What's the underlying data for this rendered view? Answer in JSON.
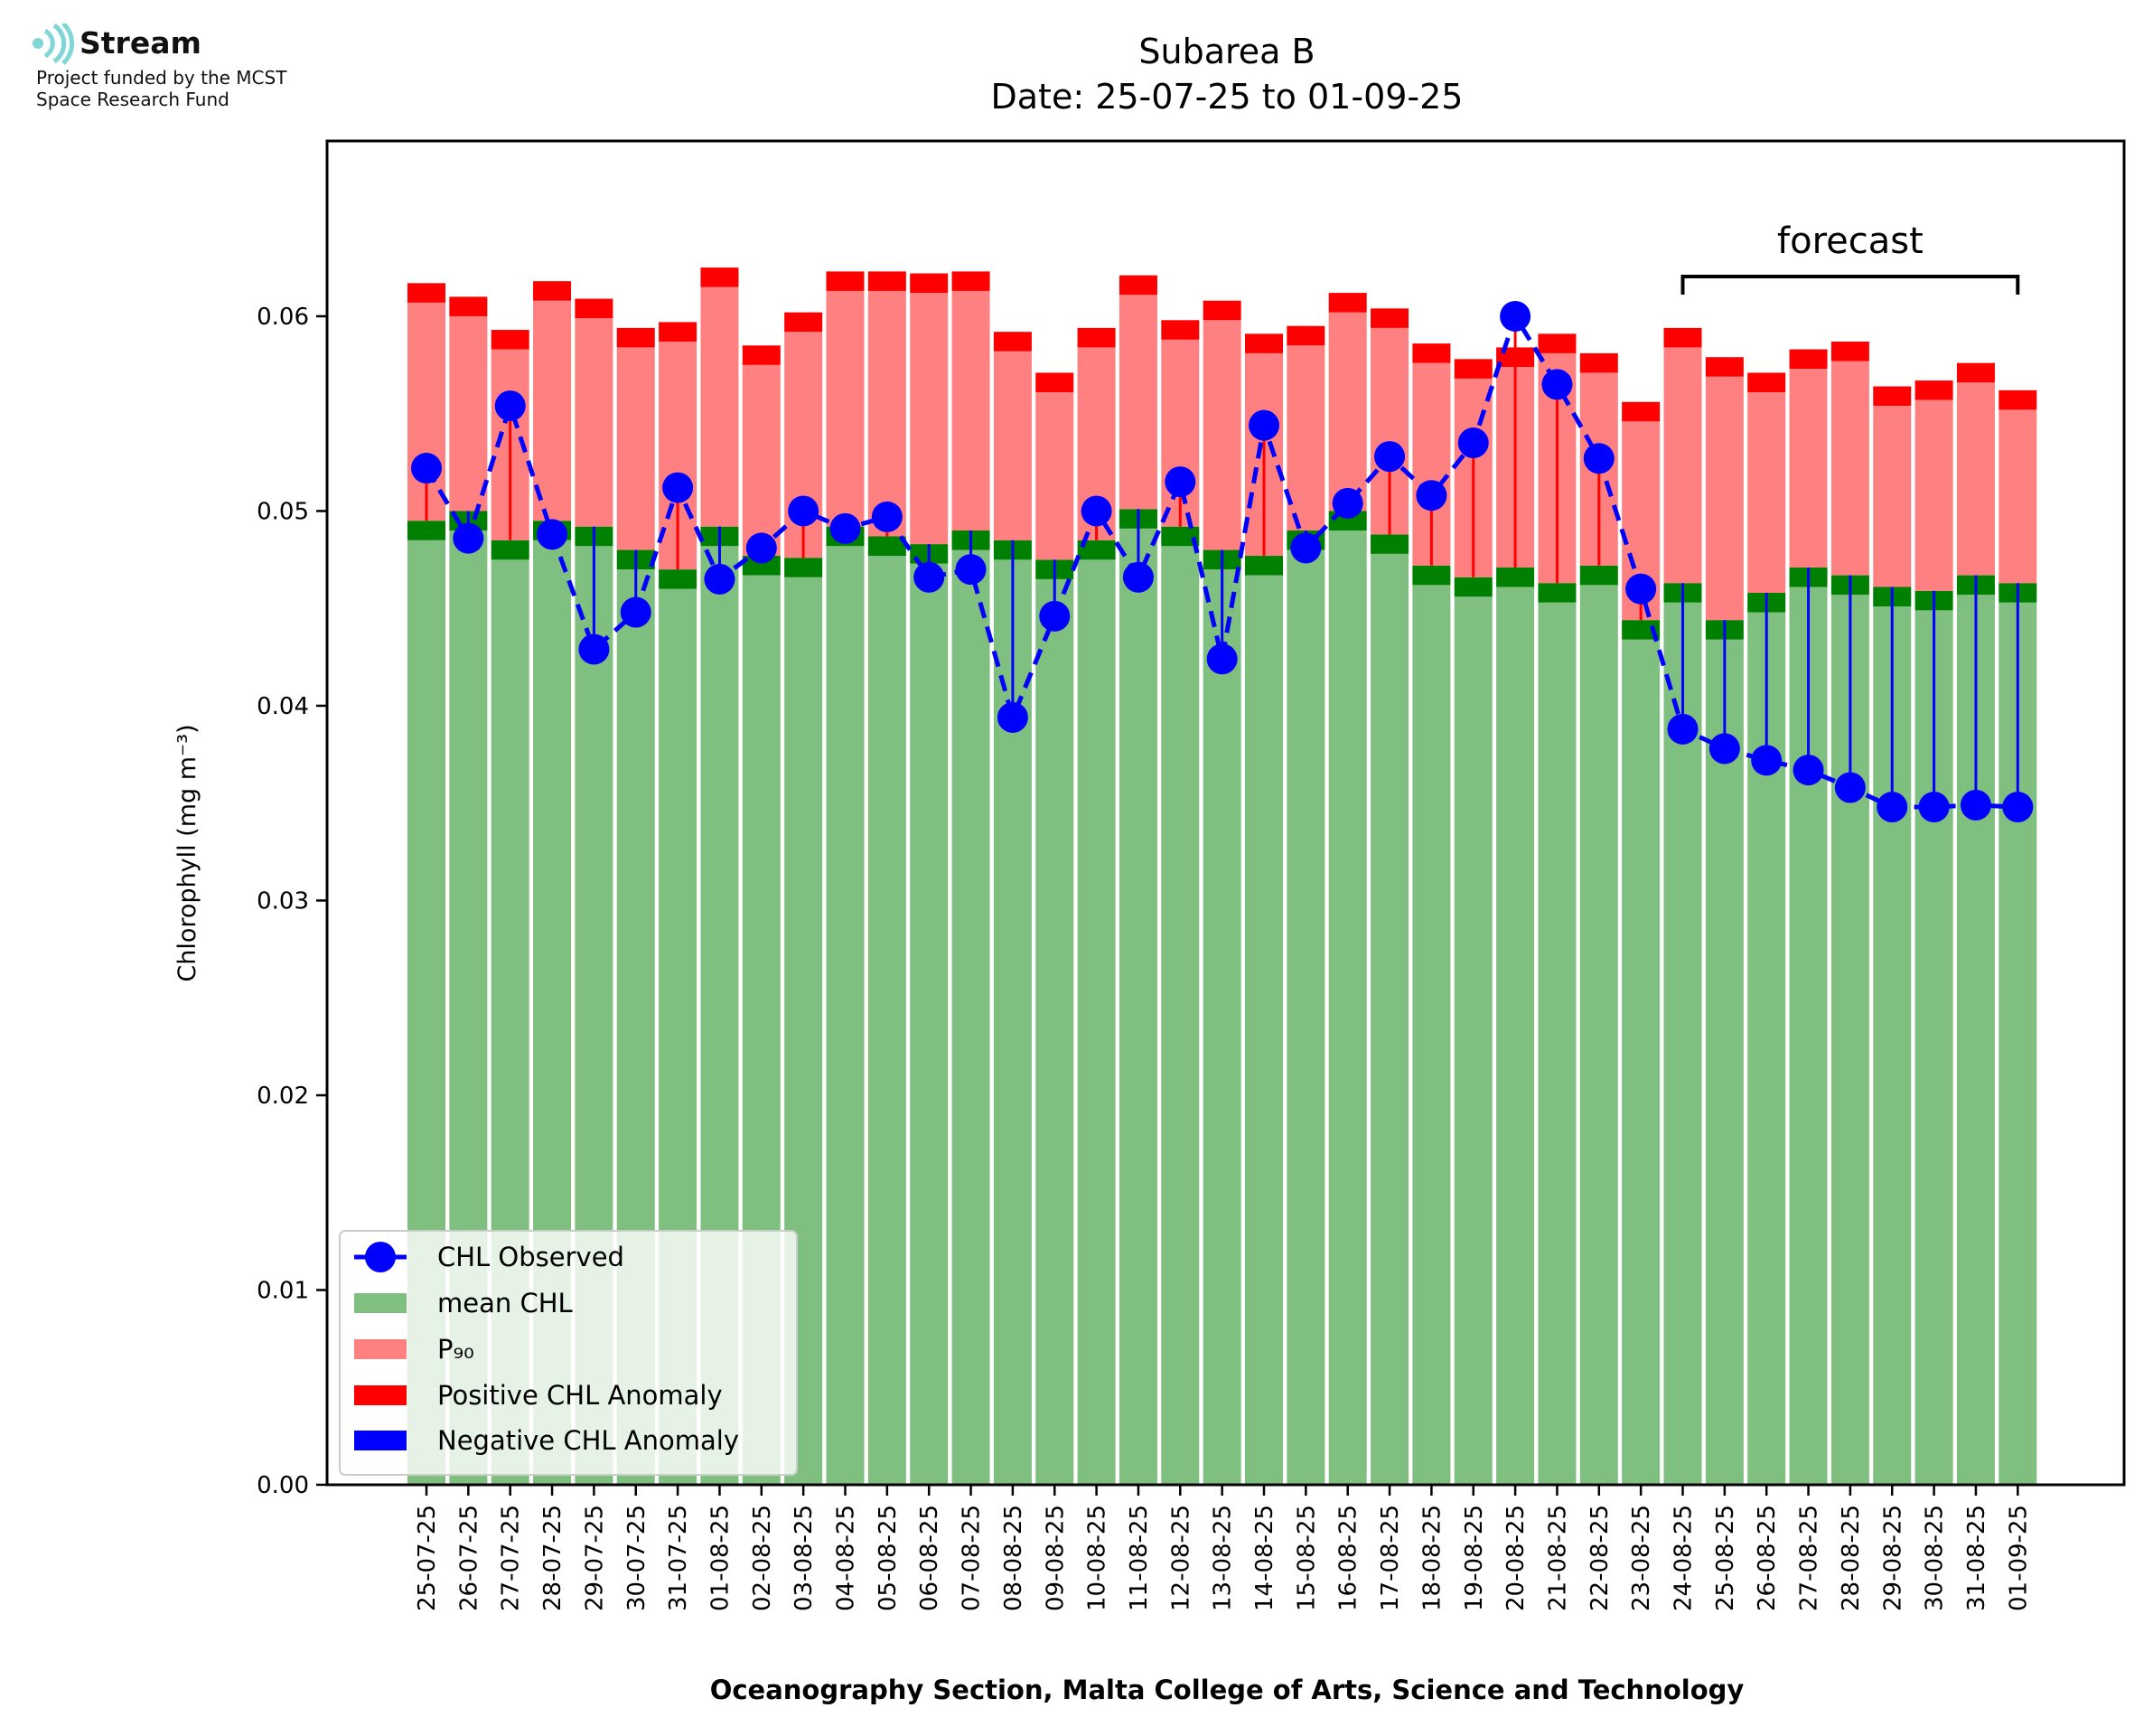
{
  "logo": {
    "name": "Stream",
    "subtitle": "Project funded by the MCST\nSpace Research Fund"
  },
  "chart_data": {
    "type": "bar",
    "title": "Subarea B",
    "subtitle": "Date: 25-07-25 to 01-09-25",
    "xlabel": "Oceanography Section, Malta College of Arts, Science and Technology",
    "ylabel": "Chlorophyll (mg m⁻³)",
    "ylim": [
      0,
      0.069
    ],
    "yticks": [
      0.0,
      0.01,
      0.02,
      0.03,
      0.04,
      0.05,
      0.06
    ],
    "ytick_labels": [
      "0.00",
      "0.01",
      "0.02",
      "0.03",
      "0.04",
      "0.05",
      "0.06"
    ],
    "categories": [
      "25-07-25",
      "26-07-25",
      "27-07-25",
      "28-07-25",
      "29-07-25",
      "30-07-25",
      "31-07-25",
      "01-08-25",
      "02-08-25",
      "03-08-25",
      "04-08-25",
      "05-08-25",
      "06-08-25",
      "07-08-25",
      "08-08-25",
      "09-08-25",
      "10-08-25",
      "11-08-25",
      "12-08-25",
      "13-08-25",
      "14-08-25",
      "15-08-25",
      "16-08-25",
      "17-08-25",
      "18-08-25",
      "19-08-25",
      "20-08-25",
      "21-08-25",
      "22-08-25",
      "23-08-25",
      "24-08-25",
      "25-08-25",
      "26-08-25",
      "27-08-25",
      "28-08-25",
      "29-08-25",
      "30-08-25",
      "31-08-25",
      "01-09-25"
    ],
    "series": [
      {
        "name": "CHL Observed",
        "color": "#0000ff",
        "values": [
          0.0522,
          0.0486,
          0.0554,
          0.0488,
          0.0429,
          0.0448,
          0.0512,
          0.0465,
          0.0481,
          0.05,
          0.0491,
          0.0497,
          0.0466,
          0.047,
          0.0394,
          0.0446,
          0.05,
          0.0466,
          0.0515,
          0.0424,
          0.0544,
          0.0481,
          0.0504,
          0.0528,
          0.0508,
          0.0535,
          0.06,
          0.0565,
          0.0527,
          0.046,
          0.0388,
          0.0378,
          0.0372,
          0.0367,
          0.0358,
          0.0348,
          0.0348,
          0.0349,
          0.0348
        ]
      },
      {
        "name": "mean CHL",
        "color": "#7fbf7f",
        "values": [
          0.0495,
          0.05,
          0.0485,
          0.0495,
          0.0492,
          0.048,
          0.047,
          0.0492,
          0.0477,
          0.0476,
          0.0492,
          0.0487,
          0.0483,
          0.049,
          0.0485,
          0.0475,
          0.0485,
          0.0501,
          0.0492,
          0.048,
          0.0477,
          0.049,
          0.05,
          0.0488,
          0.0472,
          0.0466,
          0.0471,
          0.0463,
          0.0472,
          0.0444,
          0.0463,
          0.0444,
          0.0458,
          0.0471,
          0.0467,
          0.0461,
          0.0459,
          0.0467,
          0.0463
        ]
      },
      {
        "name": "P₉₀",
        "color": "#ff8080",
        "values": [
          0.0617,
          0.061,
          0.0593,
          0.0618,
          0.0609,
          0.0594,
          0.0597,
          0.0625,
          0.0585,
          0.0602,
          0.0623,
          0.0623,
          0.0622,
          0.0623,
          0.0592,
          0.0571,
          0.0594,
          0.0621,
          0.0598,
          0.0608,
          0.0591,
          0.0595,
          0.0612,
          0.0604,
          0.0586,
          0.0578,
          0.0584,
          0.0591,
          0.0581,
          0.0556,
          0.0594,
          0.0579,
          0.0571,
          0.0583,
          0.0587,
          0.0564,
          0.0567,
          0.0576,
          0.0562
        ]
      }
    ],
    "legend": [
      "CHL Observed",
      "mean CHL",
      "P₉₀",
      "Positive CHL Anomaly",
      "Negative CHL Anomaly"
    ],
    "legend_position": "lower-left",
    "anomaly_colors": {
      "positive": "#ff0000",
      "negative": "#0000ff",
      "mean_band": "#008000"
    },
    "annotation": {
      "text": "forecast",
      "from": "24-08-25",
      "to": "01-09-25"
    }
  }
}
